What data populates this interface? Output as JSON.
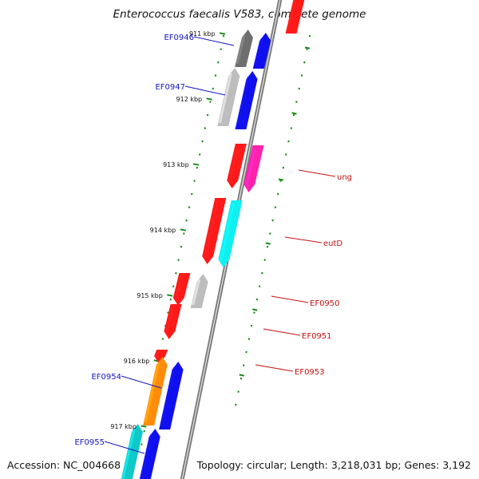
{
  "title": "Enterococcus faecalis V583, complete genome",
  "footer": {
    "accession": "Accession: NC_004668",
    "summary": "Topology: circular; Length: 3,218,031 bp; Genes: 3,192"
  },
  "ruler": {
    "tick_labels": [
      "911 kbp",
      "912 kbp",
      "913 kbp",
      "914 kbp",
      "915 kbp",
      "916 kbp",
      "917 kbp"
    ],
    "tick_color": "#1a8a1a"
  },
  "colors": {
    "backbone_outer": "#7a7a7a",
    "backbone_inner": "#e6e6e6",
    "label_blue": "#1515c0",
    "label_red": "#c41010"
  },
  "gene_labels": {
    "left": [
      "EF0946",
      "EF0947",
      "EF0954",
      "EF0955"
    ],
    "right": [
      "ung",
      "eutD",
      "EF0950",
      "EF0951",
      "EF0953"
    ]
  },
  "features": [
    {
      "name": "gene-0",
      "color": "#ff1a1a"
    },
    {
      "name": "ef0946-gene",
      "color": "#6e6e6e"
    },
    {
      "name": "ef0946-cds",
      "color": "#1010ee"
    },
    {
      "name": "ef0947-gene",
      "color": "#bdbdbd"
    },
    {
      "name": "ef0947-cds",
      "color": "#1010ee"
    },
    {
      "name": "ung-gene",
      "color": "#ff1a1a"
    },
    {
      "name": "ung-cds",
      "color": "#ff22aa"
    },
    {
      "name": "eutd-gene",
      "color": "#ff1a1a"
    },
    {
      "name": "eutd-cds",
      "color": "#10f0f0"
    },
    {
      "name": "ef0950-gene",
      "color": "#ff1a1a"
    },
    {
      "name": "ef0950-cds",
      "color": "#bdbdbd"
    },
    {
      "name": "ef0951-gene",
      "color": "#ff1a1a"
    },
    {
      "name": "ef0953-gene",
      "color": "#ff1a1a"
    },
    {
      "name": "ef0954-gene",
      "color": "#ff8c0a"
    },
    {
      "name": "ef0954-cds",
      "color": "#1010ee"
    },
    {
      "name": "ef0955-gene",
      "color": "#10c8c8"
    },
    {
      "name": "ef0955-cds",
      "color": "#1010ee"
    }
  ]
}
